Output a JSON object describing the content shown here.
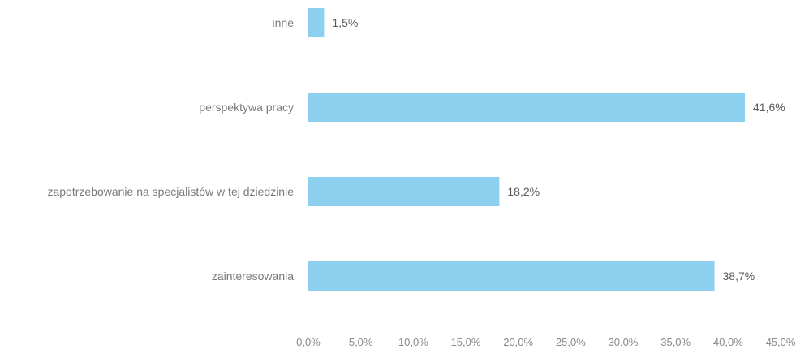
{
  "chart_data": {
    "type": "bar",
    "orientation": "horizontal",
    "categories": [
      "inne",
      "perspektywa pracy",
      "zapotrzebowanie na specjalistów w tej dziedzinie",
      "zainteresowania"
    ],
    "values": [
      1.5,
      41.6,
      18.2,
      38.7
    ],
    "value_labels": [
      "1,5%",
      "41,6%",
      "18,2%",
      "38,7%"
    ],
    "title": "",
    "xlabel": "",
    "ylabel": "",
    "xlim": [
      0,
      45
    ],
    "xticks": [
      0,
      5,
      10,
      15,
      20,
      25,
      30,
      35,
      40,
      45
    ],
    "xtick_labels": [
      "0,0%",
      "5,0%",
      "10,0%",
      "15,0%",
      "20,0%",
      "25,0%",
      "30,0%",
      "35,0%",
      "40,0%",
      "45,0%"
    ],
    "grid": false,
    "legend": "none",
    "bar_color": "#8ccfee",
    "label_color": "#7a7a7a"
  }
}
